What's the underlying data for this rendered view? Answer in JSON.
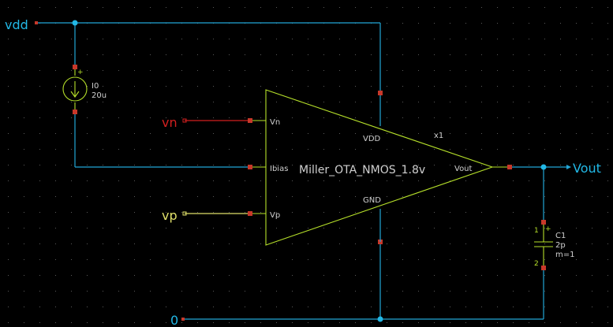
{
  "nets": {
    "vdd": "vdd",
    "gnd": "0",
    "vn": "vn",
    "vp": "vp",
    "vout": "Vout"
  },
  "current_source": {
    "name": "I0",
    "value": "20u",
    "plus": "+"
  },
  "ota": {
    "name": "Miller_OTA_NMOS_1.8v",
    "instance": "x1",
    "pins": {
      "vn": "Vn",
      "ibias": "Ibias",
      "vp": "Vp",
      "vdd": "VDD",
      "gnd": "GND",
      "vout": "Vout"
    }
  },
  "capacitor": {
    "name": "C1",
    "value": "2p",
    "mult": "m=1",
    "pin1": "1",
    "pin2": "2",
    "plus": "+"
  },
  "colors": {
    "background": "#000000",
    "wire": "#22a6d6",
    "symbol": "#b6e02a",
    "vn_net": "#d31f1f",
    "vp_net": "#e0e06a",
    "pin": "#c8382a",
    "grid_dot": "#5a5a5a"
  }
}
